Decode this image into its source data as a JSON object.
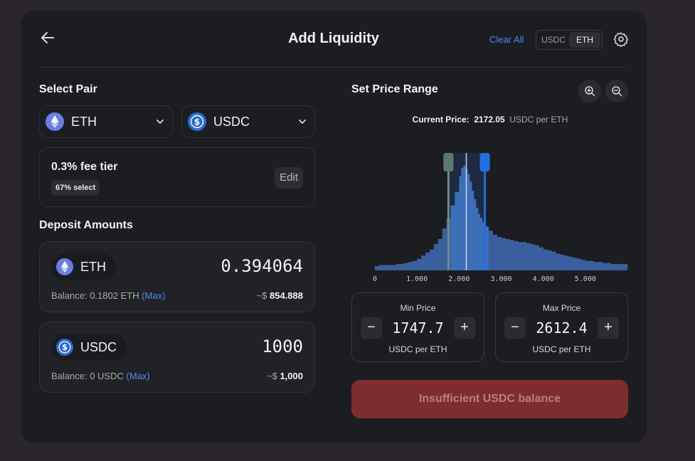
{
  "header": {
    "title": "Add Liquidity",
    "clear_all": "Clear All",
    "toggle": [
      "USDC",
      "ETH"
    ],
    "toggle_active": "ETH"
  },
  "select_pair": {
    "label": "Select Pair",
    "token_a": "ETH",
    "token_b": "USDC"
  },
  "fee": {
    "title": "0.3% fee tier",
    "badge": "67% select",
    "edit": "Edit"
  },
  "deposit": {
    "label": "Deposit Amounts",
    "eth": {
      "token": "ETH",
      "amount": "0.394064",
      "balance_prefix": "Balance: 0.1802 ETH",
      "max": "(Max)",
      "usd_prefix": "~$",
      "usd": "854.888"
    },
    "usdc": {
      "token": "USDC",
      "amount": "1000",
      "balance_prefix": "Balance: 0 USDC",
      "max": "(Max)",
      "usd_prefix": "~$",
      "usd": "1,000"
    }
  },
  "price_range": {
    "label": "Set Price Range",
    "current_label": "Current Price:",
    "current_value": "2172.05",
    "current_unit": "USDC per ETH",
    "min": {
      "label": "Min Price",
      "value": "1747.7",
      "unit": "USDC per ETH"
    },
    "max": {
      "label": "Max Price",
      "value": "2612.4",
      "unit": "USDC per ETH"
    }
  },
  "submit": {
    "label": "Insufficient USDC balance"
  },
  "chart_data": {
    "type": "area",
    "x_ticks": [
      "0",
      "1,000",
      "2,000",
      "3,000",
      "4,000",
      "5,000"
    ],
    "xlim": [
      0,
      6000
    ],
    "current_price": 2172.05,
    "range_min": 1747.7,
    "range_max": 2612.4,
    "x": [
      0,
      100,
      200,
      300,
      400,
      500,
      600,
      700,
      800,
      900,
      1000,
      1100,
      1200,
      1300,
      1400,
      1500,
      1600,
      1700,
      1800,
      1900,
      2000,
      2050,
      2100,
      2150,
      2200,
      2250,
      2300,
      2350,
      2400,
      2450,
      2500,
      2550,
      2600,
      2700,
      2800,
      2900,
      3000,
      3100,
      3200,
      3300,
      3400,
      3500,
      3600,
      3700,
      3800,
      3900,
      4000,
      4100,
      4200,
      4300,
      4400,
      4500,
      4600,
      4700,
      4800,
      4900,
      5000,
      5200,
      5400,
      5600,
      5800,
      6000
    ],
    "y": [
      0.04,
      0.05,
      0.05,
      0.05,
      0.05,
      0.06,
      0.06,
      0.07,
      0.08,
      0.09,
      0.11,
      0.14,
      0.17,
      0.2,
      0.25,
      0.3,
      0.4,
      0.5,
      0.62,
      0.75,
      0.9,
      0.98,
      1.0,
      0.97,
      0.92,
      0.85,
      0.76,
      0.68,
      0.6,
      0.54,
      0.5,
      0.46,
      0.42,
      0.38,
      0.34,
      0.32,
      0.31,
      0.3,
      0.29,
      0.28,
      0.27,
      0.27,
      0.26,
      0.25,
      0.24,
      0.22,
      0.2,
      0.19,
      0.18,
      0.16,
      0.15,
      0.14,
      0.13,
      0.12,
      0.11,
      0.1,
      0.09,
      0.08,
      0.07,
      0.06,
      0.06,
      0.05
    ]
  }
}
